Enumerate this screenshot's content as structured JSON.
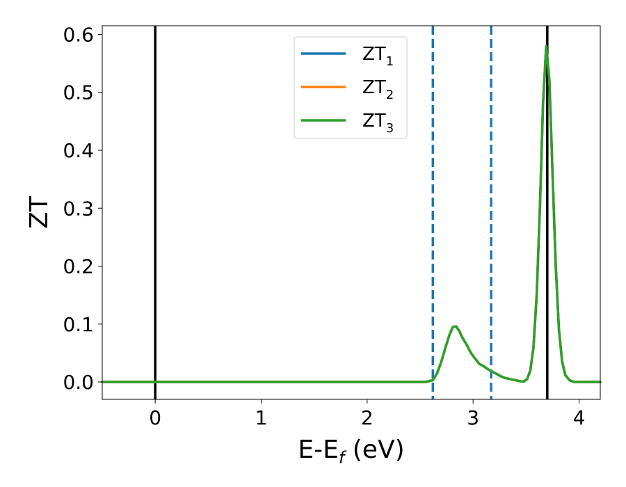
{
  "chart_data": {
    "type": "line",
    "title": "",
    "xlabel": "E-E",
    "xlabel_sub": "f",
    "xlabel_unit": " (eV)",
    "ylabel": "ZT",
    "xlim": [
      -0.5,
      4.2
    ],
    "ylim": [
      -0.03,
      0.615
    ],
    "xticks": [
      0,
      1,
      2,
      3,
      4
    ],
    "xtick_labels": [
      "0",
      "1",
      "2",
      "3",
      "4"
    ],
    "yticks": [
      0.0,
      0.1,
      0.2,
      0.3,
      0.4,
      0.5,
      0.6
    ],
    "ytick_labels": [
      "0.0",
      "0.1",
      "0.2",
      "0.3",
      "0.4",
      "0.5",
      "0.6"
    ],
    "grid": false,
    "legend_placement": "upper-center",
    "series": [
      {
        "name": "ZT",
        "name_sub": "1",
        "color": "#1f77b4",
        "x": [
          -0.5,
          0.0,
          1.0,
          2.0,
          2.55,
          2.62,
          2.66,
          2.7,
          2.74,
          2.78,
          2.81,
          2.84,
          2.87,
          2.9,
          2.94,
          2.98,
          3.02,
          3.06,
          3.1,
          3.14,
          3.18,
          3.22,
          3.26,
          3.3,
          3.35,
          3.4,
          3.45,
          3.48,
          3.51,
          3.54,
          3.57,
          3.6,
          3.63,
          3.66,
          3.69,
          3.72,
          3.75,
          3.78,
          3.81,
          3.84,
          3.87,
          3.91,
          3.95,
          4.0,
          4.2
        ],
        "y": [
          0,
          0,
          0,
          0,
          0,
          0.003,
          0.015,
          0.035,
          0.06,
          0.083,
          0.095,
          0.096,
          0.088,
          0.076,
          0.064,
          0.05,
          0.04,
          0.031,
          0.027,
          0.022,
          0.018,
          0.014,
          0.01,
          0.007,
          0.005,
          0.003,
          0.001,
          0.001,
          0.005,
          0.02,
          0.06,
          0.15,
          0.3,
          0.48,
          0.58,
          0.52,
          0.36,
          0.2,
          0.09,
          0.035,
          0.012,
          0.003,
          0.0,
          0,
          0
        ]
      },
      {
        "name": "ZT",
        "name_sub": "2",
        "color": "#ff7f0e",
        "x": [
          -0.5,
          0.0,
          1.0,
          2.0,
          2.55,
          2.62,
          2.66,
          2.7,
          2.74,
          2.78,
          2.81,
          2.84,
          2.87,
          2.9,
          2.94,
          2.98,
          3.02,
          3.06,
          3.1,
          3.14,
          3.18,
          3.22,
          3.26,
          3.3,
          3.35,
          3.4,
          3.45,
          3.48,
          3.51,
          3.54,
          3.57,
          3.6,
          3.63,
          3.66,
          3.69,
          3.72,
          3.75,
          3.78,
          3.81,
          3.84,
          3.87,
          3.91,
          3.95,
          4.0,
          4.2
        ],
        "y": [
          0,
          0,
          0,
          0,
          0,
          0.003,
          0.015,
          0.035,
          0.06,
          0.083,
          0.095,
          0.096,
          0.088,
          0.076,
          0.064,
          0.05,
          0.04,
          0.031,
          0.027,
          0.022,
          0.018,
          0.014,
          0.01,
          0.007,
          0.005,
          0.003,
          0.001,
          0.001,
          0.005,
          0.02,
          0.06,
          0.15,
          0.3,
          0.48,
          0.58,
          0.52,
          0.36,
          0.2,
          0.09,
          0.035,
          0.012,
          0.003,
          0.0,
          0,
          0
        ]
      },
      {
        "name": "ZT",
        "name_sub": "3",
        "color": "#2ca02c",
        "x": [
          -0.5,
          0.0,
          1.0,
          2.0,
          2.55,
          2.62,
          2.66,
          2.7,
          2.74,
          2.78,
          2.81,
          2.84,
          2.87,
          2.9,
          2.94,
          2.98,
          3.02,
          3.06,
          3.1,
          3.14,
          3.18,
          3.22,
          3.26,
          3.3,
          3.35,
          3.4,
          3.45,
          3.48,
          3.51,
          3.54,
          3.57,
          3.6,
          3.63,
          3.66,
          3.69,
          3.72,
          3.75,
          3.78,
          3.81,
          3.84,
          3.87,
          3.91,
          3.95,
          4.0,
          4.2
        ],
        "y": [
          0,
          0,
          0,
          0,
          0,
          0.003,
          0.015,
          0.035,
          0.06,
          0.083,
          0.095,
          0.096,
          0.088,
          0.076,
          0.064,
          0.05,
          0.04,
          0.031,
          0.027,
          0.022,
          0.018,
          0.014,
          0.01,
          0.007,
          0.005,
          0.003,
          0.001,
          0.001,
          0.005,
          0.02,
          0.06,
          0.15,
          0.3,
          0.48,
          0.58,
          0.52,
          0.36,
          0.2,
          0.09,
          0.035,
          0.012,
          0.003,
          0.0,
          0,
          0
        ]
      }
    ],
    "vlines": [
      {
        "x": 0.0,
        "style": "solid",
        "color": "#000000"
      },
      {
        "x": 3.7,
        "style": "solid",
        "color": "#000000"
      },
      {
        "x": 2.62,
        "style": "dashed",
        "color": "#1f77b4"
      },
      {
        "x": 3.17,
        "style": "dashed",
        "color": "#1f77b4"
      }
    ]
  }
}
